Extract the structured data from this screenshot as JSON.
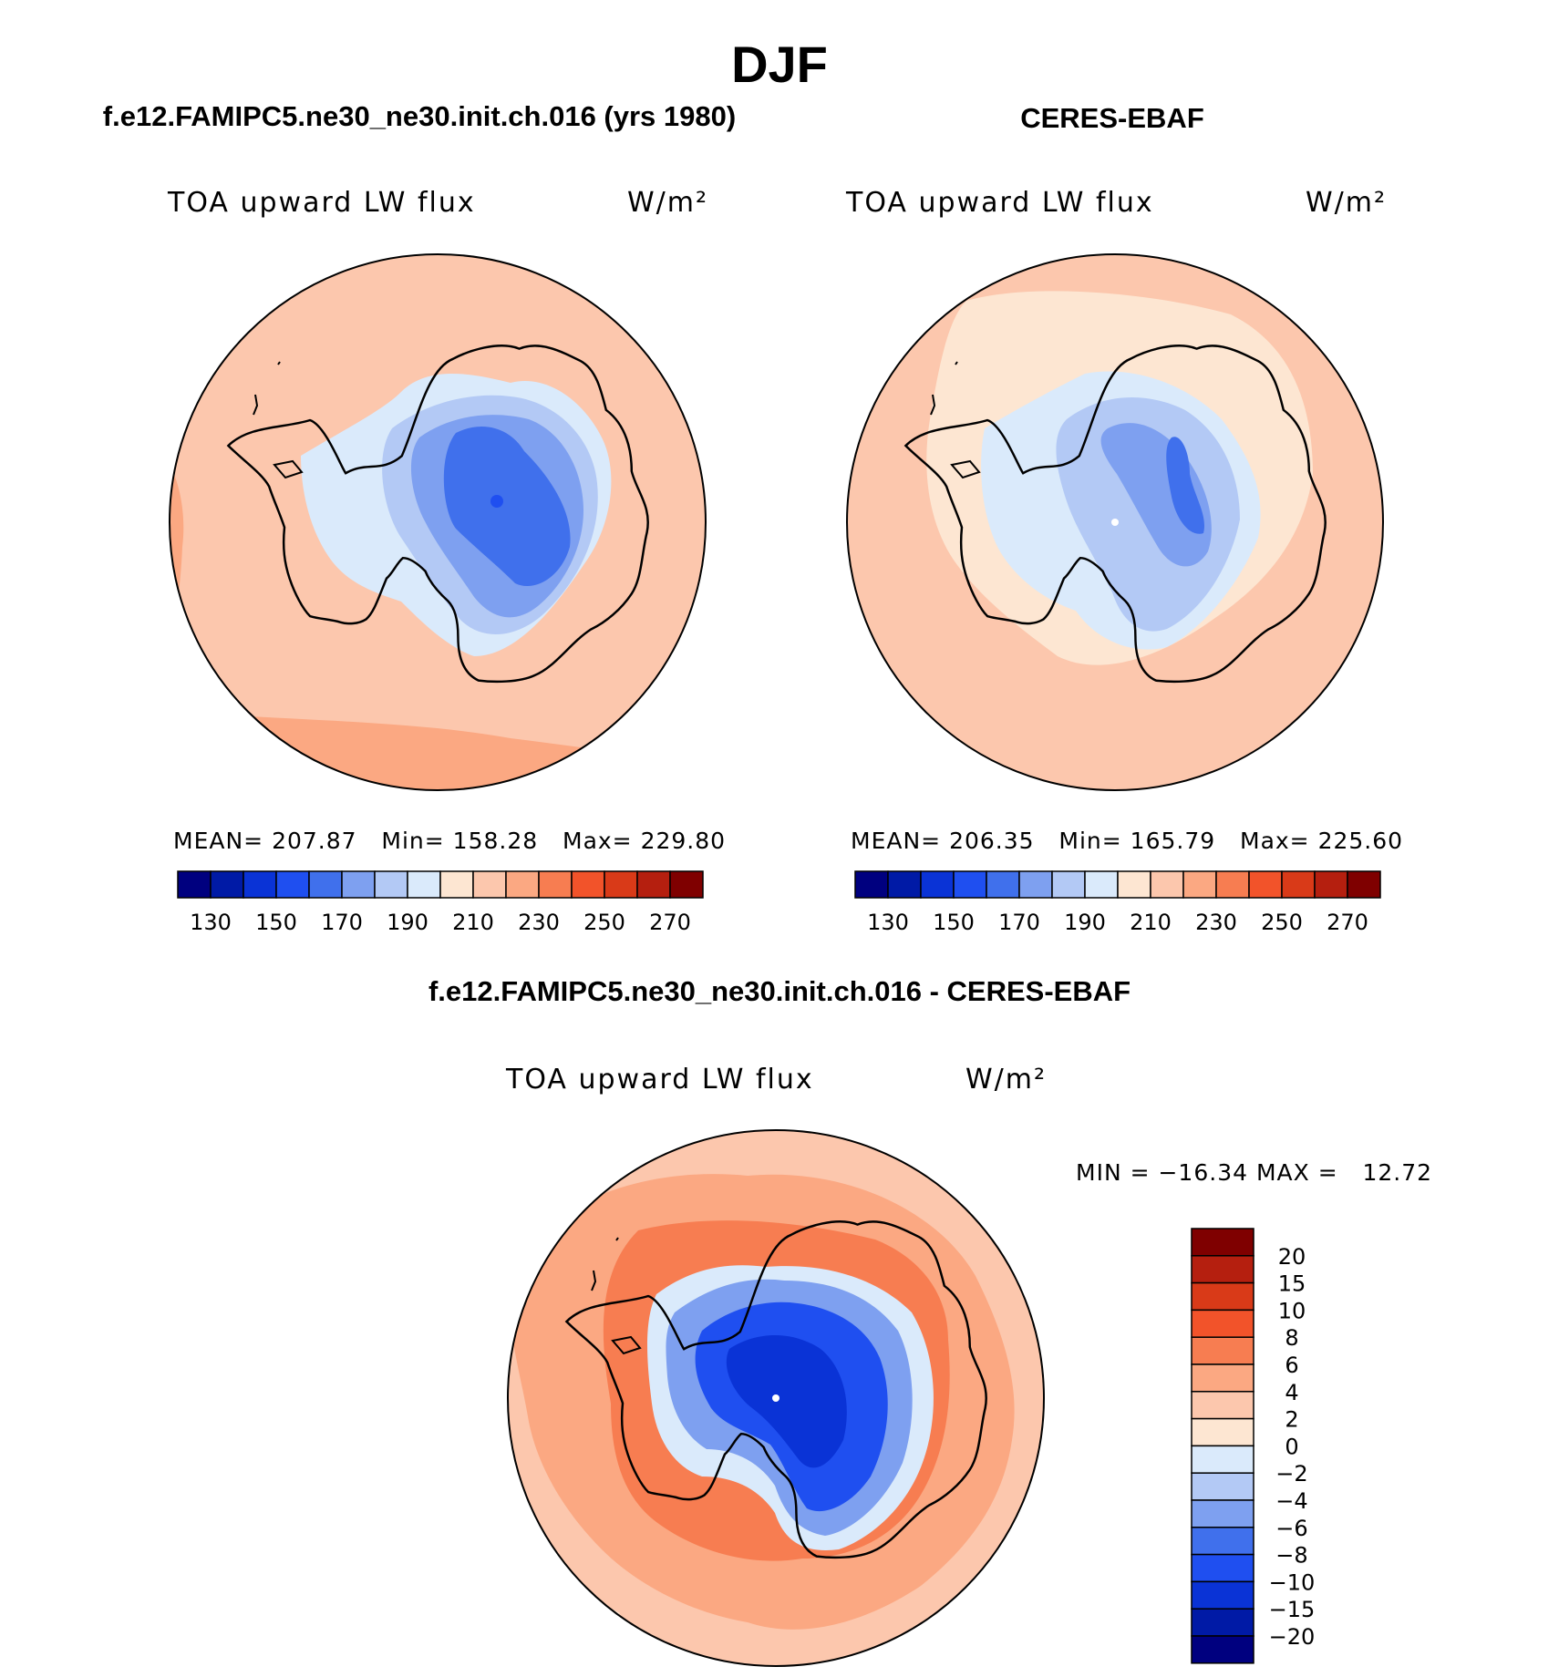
{
  "title": "DJF",
  "panels": [
    {
      "id": "model",
      "title": "f.e12.FAMIPC5.ne30_ne30.init.ch.016 (yrs 1980)",
      "variable": "TOA upward LW flux",
      "units": "W/m²",
      "stats": {
        "mean_label": "MEAN=",
        "mean": "207.87",
        "min_label": "Min=",
        "min": "158.28",
        "max_label": "Max=",
        "max": "229.80"
      }
    },
    {
      "id": "obs",
      "title": "CERES-EBAF",
      "variable": "TOA upward LW flux",
      "units": "W/m²",
      "stats": {
        "mean_label": "MEAN=",
        "mean": "206.35",
        "min_label": "Min=",
        "min": "165.79",
        "max_label": "Max=",
        "max": "225.60"
      }
    },
    {
      "id": "diff",
      "title": "f.e12.FAMIPC5.ne30_ne30.init.ch.016 - CERES-EBAF",
      "variable": "TOA upward LW flux",
      "units": "W/m²",
      "stats_text": "MIN = −16.34 MAX =   12.72"
    }
  ],
  "colorbar_horizontal": {
    "tick_labels": [
      "130",
      "150",
      "170",
      "190",
      "210",
      "230",
      "250",
      "270"
    ],
    "colors": [
      "#00007f",
      "#001aa6",
      "#0a33d6",
      "#1f4ff0",
      "#4070ec",
      "#7ea0f0",
      "#b3c9f5",
      "#daeafb",
      "#fde6d2",
      "#fcc7ad",
      "#fba882",
      "#f77d51",
      "#f2532a",
      "#d93a18",
      "#b51f0f",
      "#7f0000"
    ]
  },
  "colorbar_vertical": {
    "tick_labels": [
      "20",
      "15",
      "10",
      "8",
      "6",
      "4",
      "2",
      "0",
      "−2",
      "−4",
      "−6",
      "−8",
      "−10",
      "−15",
      "−20"
    ],
    "colors": [
      "#7f0000",
      "#b51f0f",
      "#d93a18",
      "#f2532a",
      "#f77d51",
      "#fba882",
      "#fcc7ad",
      "#fde6d2",
      "#daeafb",
      "#b3c9f5",
      "#7ea0f0",
      "#4070ec",
      "#1f4ff0",
      "#0a33d6",
      "#001aa6",
      "#00007f"
    ]
  }
}
